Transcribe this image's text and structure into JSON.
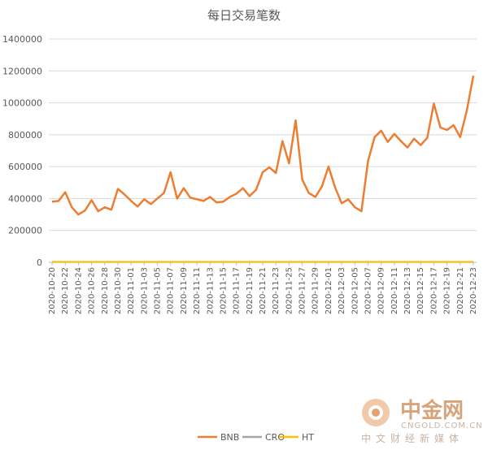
{
  "chart_data": {
    "type": "line",
    "title": "每日交易笔数",
    "xlabel": "",
    "ylabel": "",
    "ylim": [
      0,
      1400000
    ],
    "yticks": [
      0,
      200000,
      400000,
      600000,
      800000,
      1000000,
      1200000,
      1400000
    ],
    "ytick_labels": [
      "0",
      "200000",
      "400000",
      "600000",
      "800000",
      "1000000",
      "1200000",
      "1400000"
    ],
    "grid": true,
    "legend_position": "bottom",
    "x": [
      "2020-10-20",
      "2020-10-21",
      "2020-10-22",
      "2020-10-23",
      "2020-10-24",
      "2020-10-25",
      "2020-10-26",
      "2020-10-27",
      "2020-10-28",
      "2020-10-29",
      "2020-10-30",
      "2020-10-31",
      "2020-11-01",
      "2020-11-02",
      "2020-11-03",
      "2020-11-04",
      "2020-11-05",
      "2020-11-06",
      "2020-11-07",
      "2020-11-08",
      "2020-11-09",
      "2020-11-10",
      "2020-11-11",
      "2020-11-12",
      "2020-11-13",
      "2020-11-14",
      "2020-11-15",
      "2020-11-16",
      "2020-11-17",
      "2020-11-18",
      "2020-11-19",
      "2020-11-20",
      "2020-11-21",
      "2020-11-22",
      "2020-11-23",
      "2020-11-24",
      "2020-11-25",
      "2020-11-26",
      "2020-11-27",
      "2020-11-28",
      "2020-11-29",
      "2020-11-30",
      "2020-12-01",
      "2020-12-02",
      "2020-12-03",
      "2020-12-04",
      "2020-12-05",
      "2020-12-06",
      "2020-12-07",
      "2020-12-08",
      "2020-12-09",
      "2020-12-10",
      "2020-12-11",
      "2020-12-12",
      "2020-12-13",
      "2020-12-14",
      "2020-12-15",
      "2020-12-16",
      "2020-12-17",
      "2020-12-18",
      "2020-12-19",
      "2020-12-20",
      "2020-12-21",
      "2020-12-22",
      "2020-12-23"
    ],
    "xtick_labels": [
      "2020-10-20",
      "2020-10-22",
      "2020-10-24",
      "2020-10-26",
      "2020-10-28",
      "2020-10-30",
      "2020-11-01",
      "2020-11-03",
      "2020-11-05",
      "2020-11-07",
      "2020-11-09",
      "2020-11-11",
      "2020-11-13",
      "2020-11-15",
      "2020-11-17",
      "2020-11-19",
      "2020-11-21",
      "2020-11-23",
      "2020-11-25",
      "2020-11-27",
      "2020-11-29",
      "2020-12-01",
      "2020-12-03",
      "2020-12-05",
      "2020-12-07",
      "2020-12-09",
      "2020-12-11",
      "2020-12-13",
      "2020-12-15",
      "2020-12-17",
      "2020-12-19",
      "2020-12-21",
      "2020-12-23"
    ],
    "series": [
      {
        "name": "BNB",
        "color": "#ed7d31",
        "values": [
          380000,
          385000,
          440000,
          345000,
          300000,
          325000,
          390000,
          320000,
          345000,
          330000,
          460000,
          425000,
          385000,
          350000,
          395000,
          365000,
          400000,
          435000,
          565000,
          400000,
          465000,
          405000,
          395000,
          385000,
          410000,
          375000,
          380000,
          410000,
          430000,
          465000,
          415000,
          455000,
          565000,
          595000,
          560000,
          760000,
          620000,
          890000,
          520000,
          435000,
          410000,
          475000,
          600000,
          470000,
          370000,
          395000,
          345000,
          320000,
          635000,
          785000,
          825000,
          755000,
          805000,
          760000,
          720000,
          775000,
          735000,
          780000,
          995000,
          845000,
          830000,
          860000,
          785000,
          950000,
          1170000
        ]
      },
      {
        "name": "CRO",
        "color": "#a5a5a5",
        "values": [
          2000,
          2000,
          2000,
          2000,
          2000,
          2000,
          2000,
          2000,
          2000,
          2000,
          2000,
          2000,
          2000,
          2000,
          2000,
          2000,
          2000,
          2000,
          2000,
          2000,
          2000,
          2000,
          2000,
          2000,
          2000,
          2000,
          2000,
          2000,
          2000,
          2000,
          2000,
          2000,
          2000,
          2000,
          2000,
          2000,
          2000,
          2000,
          2000,
          2000,
          2000,
          2000,
          2000,
          2000,
          2000,
          2000,
          2000,
          2000,
          2000,
          2000,
          2000,
          2000,
          2000,
          2000,
          2000,
          2000,
          2000,
          2000,
          2000,
          2000,
          2000,
          2000,
          2000,
          2000,
          2000
        ]
      },
      {
        "name": "HT",
        "color": "#ffc000",
        "values": [
          3000,
          3000,
          3000,
          3000,
          3000,
          3000,
          3000,
          3000,
          3000,
          3000,
          3000,
          3000,
          3000,
          3000,
          3000,
          3000,
          3000,
          3000,
          3000,
          3000,
          3000,
          3000,
          3000,
          3000,
          3000,
          3000,
          3000,
          3000,
          3000,
          3000,
          3000,
          3000,
          3000,
          3000,
          3000,
          3000,
          3000,
          3000,
          3000,
          3000,
          3000,
          3000,
          3000,
          3000,
          3000,
          3000,
          3000,
          3000,
          3000,
          3000,
          3000,
          3000,
          3000,
          3000,
          3000,
          3000,
          3000,
          3000,
          3000,
          3000,
          3000,
          3000,
          3000,
          3000,
          3000
        ]
      }
    ]
  },
  "watermark": {
    "brand_cn": "中金网",
    "domain": "CNGOLD.COM.CN",
    "tagline": "中文财经新媒体",
    "color": "#d9a37a"
  }
}
